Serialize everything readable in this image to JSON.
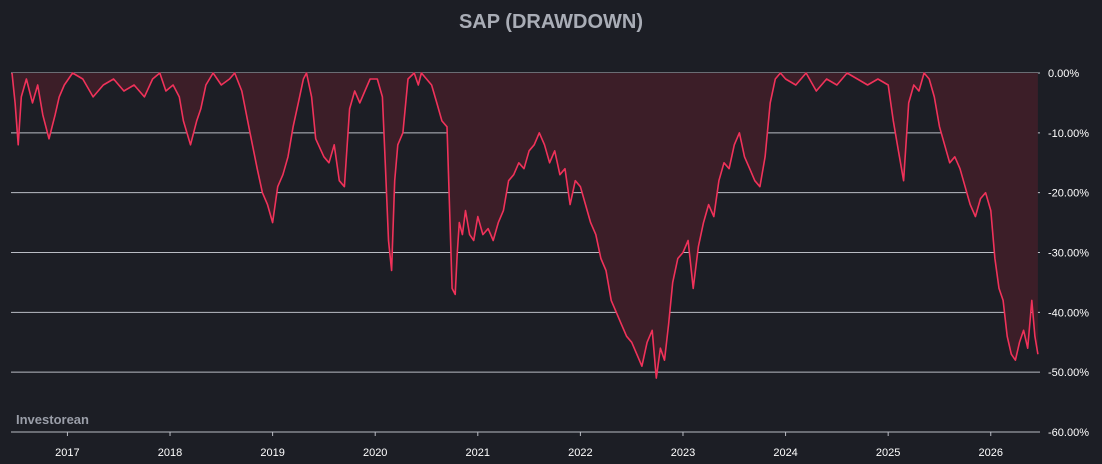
{
  "chart_data": {
    "type": "area",
    "title": "SAP (DRAWDOWN)",
    "watermark": "Investorean",
    "xlabel": "",
    "ylabel": "",
    "x_ticks": [
      "2017",
      "2018",
      "2019",
      "2020",
      "2021",
      "2022",
      "2023",
      "2024",
      "2025",
      "2026"
    ],
    "y_ticks": [
      "0.00%",
      "-10.00%",
      "-20.00%",
      "-30.00%",
      "-40.00%",
      "-50.00%",
      "-60.00%"
    ],
    "ylim": [
      -60,
      0
    ],
    "xlim": [
      2016.45,
      2026.48
    ],
    "grid": true,
    "colors": {
      "line": "#f0325a",
      "fill": "#3c1e28",
      "grid": "#b9bcc4",
      "background": "#1c1e25"
    },
    "series": [
      {
        "x": [
          2016.46,
          2016.49,
          2016.52,
          2016.55,
          2016.6,
          2016.66,
          2016.71,
          2016.76,
          2016.82,
          2016.88,
          2016.92,
          2016.97,
          2017.05,
          2017.15,
          2017.25,
          2017.35,
          2017.45,
          2017.55,
          2017.65,
          2017.75,
          2017.83,
          2017.9,
          2017.96,
          2018.03,
          2018.09,
          2018.13,
          2018.2,
          2018.26,
          2018.3,
          2018.35,
          2018.42,
          2018.5,
          2018.58,
          2018.63,
          2018.7,
          2018.78,
          2018.85,
          2018.9,
          2018.95,
          2019.0,
          2019.05,
          2019.1,
          2019.15,
          2019.2,
          2019.25,
          2019.3,
          2019.33,
          2019.38,
          2019.42,
          2019.5,
          2019.55,
          2019.6,
          2019.65,
          2019.7,
          2019.75,
          2019.8,
          2019.85,
          2019.9,
          2019.95,
          2020.02,
          2020.07,
          2020.1,
          2020.13,
          2020.16,
          2020.19,
          2020.22,
          2020.27,
          2020.32,
          2020.38,
          2020.42,
          2020.45,
          2020.5,
          2020.55,
          2020.6,
          2020.65,
          2020.7,
          2020.75,
          2020.78,
          2020.8,
          2020.82,
          2020.85,
          2020.88,
          2020.92,
          2020.96,
          2021.0,
          2021.05,
          2021.1,
          2021.15,
          2021.2,
          2021.25,
          2021.3,
          2021.35,
          2021.4,
          2021.45,
          2021.5,
          2021.55,
          2021.6,
          2021.65,
          2021.7,
          2021.75,
          2021.8,
          2021.85,
          2021.9,
          2021.95,
          2022.0,
          2022.05,
          2022.1,
          2022.15,
          2022.2,
          2022.25,
          2022.3,
          2022.35,
          2022.4,
          2022.45,
          2022.5,
          2022.55,
          2022.6,
          2022.65,
          2022.7,
          2022.74,
          2022.78,
          2022.82,
          2022.86,
          2022.9,
          2022.95,
          2023.0,
          2023.05,
          2023.1,
          2023.15,
          2023.2,
          2023.25,
          2023.3,
          2023.35,
          2023.4,
          2023.45,
          2023.5,
          2023.55,
          2023.6,
          2023.65,
          2023.7,
          2023.75,
          2023.8,
          2023.85,
          2023.9,
          2023.95,
          2024.0,
          2024.1,
          2024.2,
          2024.3,
          2024.4,
          2024.5,
          2024.6,
          2024.7,
          2024.8,
          2024.9,
          2025.0,
          2025.05,
          2025.1,
          2025.15,
          2025.2,
          2025.25,
          2025.3,
          2025.35,
          2025.4,
          2025.45,
          2025.5,
          2025.55,
          2025.6,
          2025.65,
          2025.7,
          2025.75,
          2025.8,
          2025.85,
          2025.9,
          2025.95,
          2026.0,
          2026.04,
          2026.08,
          2026.12,
          2026.16,
          2026.2,
          2026.24,
          2026.28,
          2026.32,
          2026.36,
          2026.4,
          2026.43,
          2026.46
        ],
        "values": [
          0,
          -5,
          -12,
          -4,
          -1,
          -5,
          -2,
          -7,
          -11,
          -7,
          -4,
          -2,
          0,
          -1,
          -4,
          -2,
          -1,
          -3,
          -2,
          -4,
          -1,
          0,
          -3,
          -2,
          -4,
          -8,
          -12,
          -8,
          -6,
          -2,
          0,
          -2,
          -1,
          0,
          -3,
          -10,
          -16,
          -20,
          -22,
          -25,
          -19,
          -17,
          -14,
          -9,
          -5,
          -1,
          0,
          -4,
          -11,
          -14,
          -15,
          -12,
          -18,
          -19,
          -6,
          -3,
          -5,
          -3,
          -1,
          -1,
          -4,
          -16,
          -28,
          -33,
          -18,
          -12,
          -10,
          -1,
          0,
          -2,
          0,
          -1,
          -2,
          -5,
          -8,
          -9,
          -36,
          -37,
          -30,
          -25,
          -27,
          -23,
          -27,
          -28,
          -24,
          -27,
          -26,
          -28,
          -25,
          -23,
          -18,
          -17,
          -15,
          -16,
          -13,
          -12,
          -10,
          -12,
          -15,
          -13,
          -17,
          -16,
          -22,
          -18,
          -19,
          -22,
          -25,
          -27,
          -31,
          -33,
          -38,
          -40,
          -42,
          -44,
          -45,
          -47,
          -49,
          -45,
          -43,
          -51,
          -46,
          -48,
          -42,
          -35,
          -31,
          -30,
          -28,
          -36,
          -29,
          -25,
          -22,
          -24,
          -18,
          -15,
          -16,
          -12,
          -10,
          -14,
          -16,
          -18,
          -19,
          -14,
          -5,
          -1,
          0,
          -1,
          -2,
          0,
          -3,
          -1,
          -2,
          0,
          -1,
          -2,
          -1,
          -2,
          -8,
          -13,
          -18,
          -5,
          -2,
          -3,
          0,
          -1,
          -4,
          -9,
          -12,
          -15,
          -14,
          -16,
          -19,
          -22,
          -24,
          -21,
          -20,
          -23,
          -31,
          -36,
          -38,
          -44,
          -47,
          -48,
          -45,
          -43,
          -46,
          -38,
          -44,
          -47
        ]
      }
    ]
  }
}
